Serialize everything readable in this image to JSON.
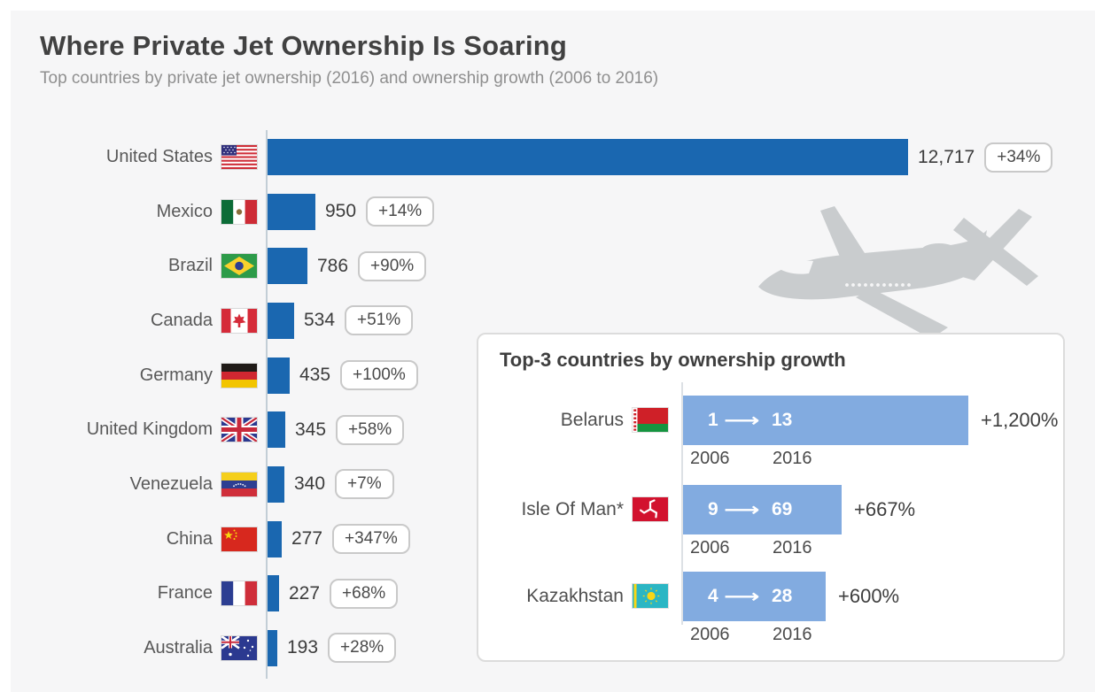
{
  "title": "Where Private Jet Ownership Is Soaring",
  "subtitle": "Top countries by private jet ownership (2016) and ownership growth (2006 to 2016)",
  "colors": {
    "background": "#f6f6f7",
    "main_bar_blue": "#1a67b0",
    "inset_bar_blue": "#82abe0",
    "title_text": "#414141",
    "subtitle_text": "#8f8f8f",
    "badge_border": "#c9c9c9",
    "airplane_gray": "#c9ccce"
  },
  "chart_data": [
    {
      "type": "bar",
      "orientation": "horizontal",
      "title": "Where Private Jet Ownership Is Soaring",
      "subtitle": "Top countries by private jet ownership (2016) and ownership growth (2006 to 2016)",
      "categories": [
        "United States",
        "Mexico",
        "Brazil",
        "Canada",
        "Germany",
        "United Kingdom",
        "Venezuela",
        "China",
        "France",
        "Australia"
      ],
      "values": [
        12717,
        950,
        786,
        534,
        435,
        345,
        340,
        277,
        227,
        193
      ],
      "value_labels": [
        "12,717",
        "950",
        "786",
        "534",
        "435",
        "345",
        "340",
        "277",
        "227",
        "193"
      ],
      "growth_labels": [
        "+34%",
        "+14%",
        "+90%",
        "+51%",
        "+100%",
        "+58%",
        "+7%",
        "+347%",
        "+68%",
        "+28%"
      ],
      "flags": [
        "flag-united-states",
        "flag-mexico",
        "flag-brazil",
        "flag-canada",
        "flag-germany",
        "flag-united-kingdom",
        "flag-venezuela",
        "flag-china",
        "flag-france",
        "flag-australia"
      ],
      "xlim": [
        0,
        12717
      ],
      "grid": false,
      "legend": "none"
    },
    {
      "type": "bar",
      "orientation": "horizontal",
      "title": "Top-3 countries by ownership growth",
      "categories": [
        "Belarus",
        "Isle Of Man*",
        "Kazakhstan"
      ],
      "series": [
        {
          "name": "2006",
          "values": [
            1,
            9,
            4
          ]
        },
        {
          "name": "2016",
          "values": [
            13,
            69,
            28
          ]
        }
      ],
      "growth_values": [
        1200,
        667,
        600
      ],
      "growth_labels": [
        "+1,200%",
        "+667%",
        "+600%"
      ],
      "flags": [
        "flag-belarus",
        "flag-isle-of-man",
        "flag-kazakhstan"
      ],
      "year_from": "2006",
      "year_to": "2016",
      "grid": false,
      "legend": "none"
    }
  ]
}
